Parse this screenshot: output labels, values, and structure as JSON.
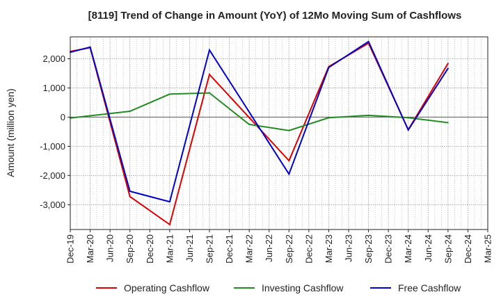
{
  "chart_data": {
    "type": "line",
    "title": "[8119]  Trend of Change in Amount (YoY) of 12Mo Moving Sum of Cashflows",
    "xlabel": "",
    "ylabel": "Amount (million yen)",
    "ylim": [
      -3850,
      2750
    ],
    "yticks": [
      2000,
      1000,
      0,
      -1000,
      -2000,
      -3000
    ],
    "ytick_labels": [
      "2,000",
      "1,000",
      "0",
      "-1,000",
      "-2,000",
      "-3,000"
    ],
    "categories": [
      "Dec-19",
      "Mar-20",
      "Jun-20",
      "Sep-20",
      "Dec-20",
      "Mar-21",
      "Jun-21",
      "Sep-21",
      "Dec-21",
      "Mar-22",
      "Jun-22",
      "Sep-22",
      "Dec-22",
      "Mar-23",
      "Jun-23",
      "Sep-23",
      "Dec-23",
      "Mar-24",
      "Jun-24",
      "Sep-24",
      "Dec-24",
      "Mar-25"
    ],
    "grid": true,
    "legend_position": "bottom",
    "series": [
      {
        "name": "Operating Cashflow",
        "color": "#dd0000",
        "values": [
          2250,
          2380,
          null,
          -2720,
          null,
          -3680,
          null,
          1460,
          null,
          null,
          null,
          -1490,
          null,
          1730,
          null,
          2530,
          null,
          -430,
          null,
          1840,
          null,
          null
        ]
      },
      {
        "name": "Investing Cashflow",
        "color": "#228b22",
        "values": [
          -30,
          null,
          null,
          200,
          null,
          790,
          null,
          830,
          null,
          -250,
          null,
          -460,
          null,
          -20,
          null,
          60,
          null,
          -20,
          null,
          -190,
          null,
          null
        ]
      },
      {
        "name": "Free Cashflow",
        "color": "#0000cc",
        "values": [
          2220,
          2400,
          null,
          -2540,
          null,
          -2900,
          null,
          2300,
          null,
          null,
          null,
          -1950,
          null,
          1700,
          null,
          2590,
          null,
          -440,
          null,
          1670,
          null,
          null
        ]
      }
    ]
  }
}
